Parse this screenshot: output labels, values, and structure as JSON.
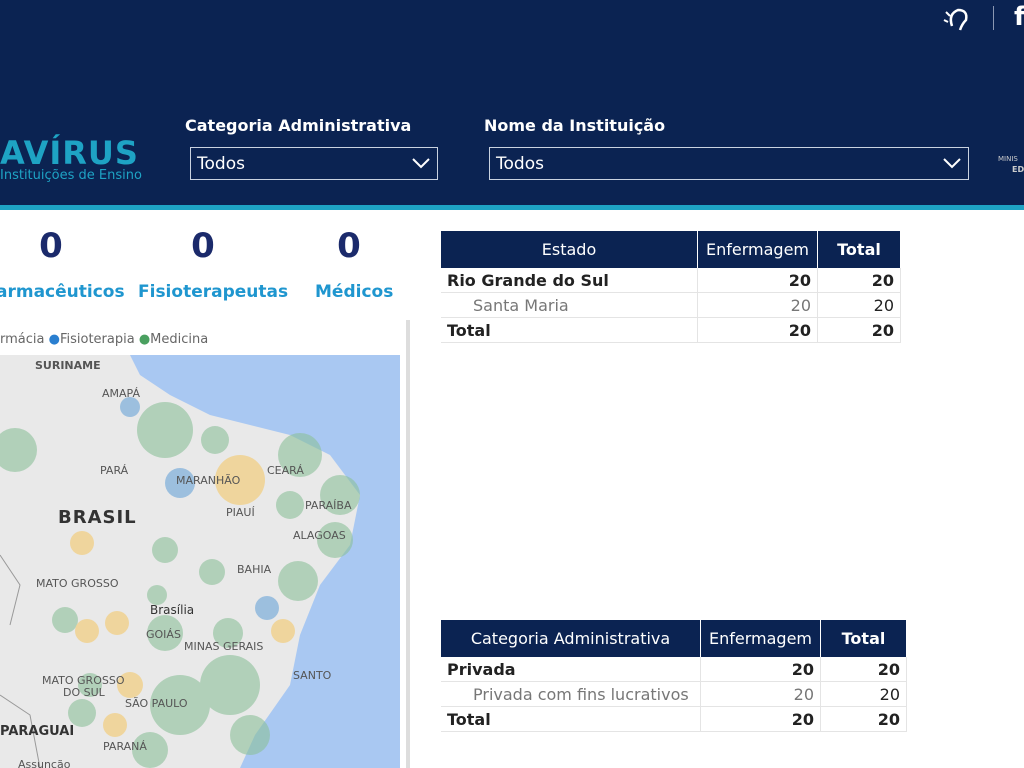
{
  "header": {
    "logo_title": "AVÍRUS",
    "logo_subtitle": "Instituições de Ensino",
    "logo_right": [
      "MINIS",
      "ED"
    ],
    "social_icon": "f"
  },
  "filters": [
    {
      "label": "Categoria Administrativa",
      "value": "Todos"
    },
    {
      "label": "Nome da Instituição",
      "value": "Todos"
    }
  ],
  "kpis": [
    {
      "value": 0,
      "label": "armacêuticos"
    },
    {
      "value": 0,
      "label": "Fisioterapeutas"
    },
    {
      "value": 0,
      "label": "Médicos"
    }
  ],
  "map": {
    "legend": [
      "rmácia",
      "Fisioterapia",
      "Medicina"
    ],
    "labels": [
      "SURINAME",
      "AMAPÁ",
      "PARÁ",
      "MARANHÃO",
      "CEARÁ",
      "PIAUÍ",
      "PARAÍBA",
      "ALAGOAS",
      "BRASIL",
      "BAHIA",
      "MATO GROSSO",
      "Brasília",
      "GOIÁS",
      "MINAS GERAIS",
      "MATO GROSSO",
      "DO SUL",
      "SÃO PAULO",
      "SANTO",
      "PARAGUAI",
      "PARANÁ",
      "Assunção"
    ]
  },
  "tables": [
    {
      "columns": [
        "Estado",
        "Enfermagem",
        "Total"
      ],
      "rows": [
        [
          "Rio Grande do Sul",
          20,
          20
        ],
        [
          "Santa Maria",
          20,
          20
        ],
        [
          "Total",
          20,
          20
        ]
      ]
    },
    {
      "columns": [
        "Categoria Administrativa",
        "Enfermagem",
        "Total"
      ],
      "rows": [
        [
          "Privada",
          20,
          20
        ],
        [
          "Privada com fins lucrativos",
          20,
          20
        ],
        [
          "Total",
          20,
          20
        ]
      ]
    }
  ]
}
